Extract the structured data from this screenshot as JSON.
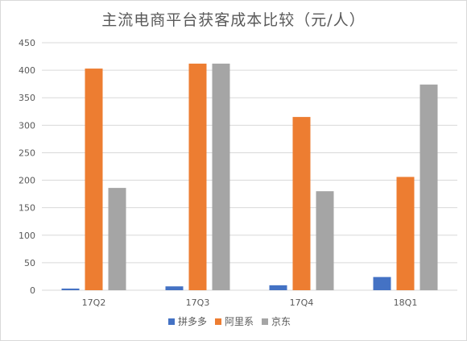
{
  "chart_data": {
    "type": "bar",
    "title": "主流电商平台获客成本比较（元/人）",
    "xlabel": "",
    "ylabel": "",
    "categories": [
      "17Q2",
      "17Q3",
      "17Q4",
      "18Q1"
    ],
    "series": [
      {
        "name": "拼多多",
        "values": [
          3,
          7,
          9,
          24
        ],
        "color": "#4472c4"
      },
      {
        "name": "阿里系",
        "values": [
          403,
          412,
          315,
          206
        ],
        "color": "#ed7d31"
      },
      {
        "name": "京东",
        "values": [
          186,
          412,
          180,
          374
        ],
        "color": "#a5a5a5"
      }
    ],
    "ylim": [
      0,
      450
    ],
    "yticks": [
      0,
      50,
      100,
      150,
      200,
      250,
      300,
      350,
      400,
      450
    ],
    "grid": true,
    "legend_position": "bottom"
  }
}
